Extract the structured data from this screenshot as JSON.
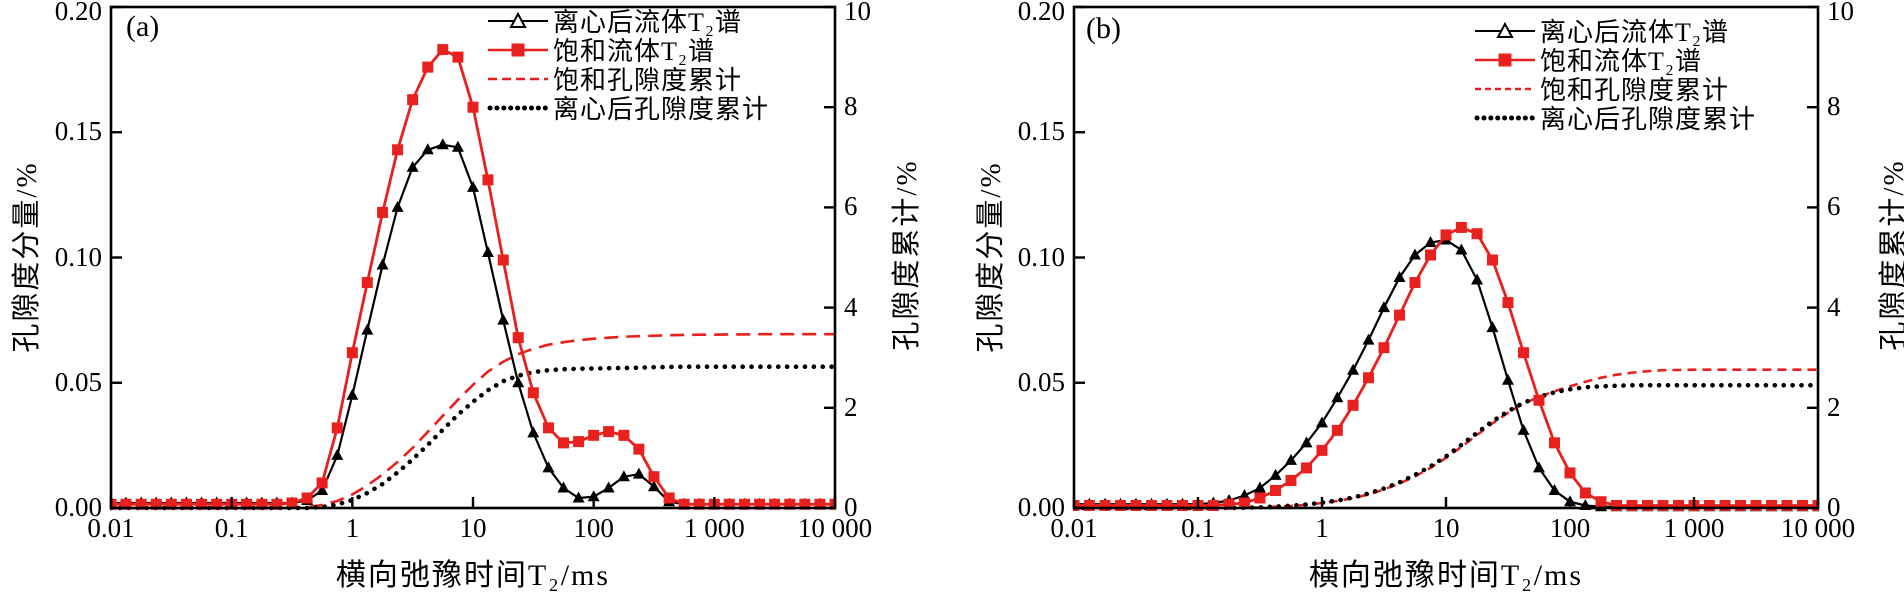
{
  "colors": {
    "red": "#e8201e",
    "black": "#000000"
  },
  "chart_data": [
    {
      "type": "line",
      "tag": "(a)",
      "xlabel": "横向弛豫时间T₂/ms",
      "ylabel_left": "孔隙度分量/%",
      "ylabel_right": "孔隙度累计/%",
      "x_scale": "log",
      "x_range": [
        0.01,
        10000
      ],
      "y_left_range": [
        0,
        0.2
      ],
      "y_right_range": [
        0,
        10
      ],
      "x_ticks": {
        "values": [
          0.01,
          0.1,
          1,
          10,
          100,
          1000,
          10000
        ],
        "labels": [
          "0.01",
          "0.1",
          "1",
          "10",
          "100",
          "1 000",
          "10 000"
        ]
      },
      "y_left_ticks": {
        "values": [
          0.2,
          0.15,
          0.1,
          0.05,
          0.0
        ],
        "labels": [
          "0.20",
          "0.15",
          "0.10",
          "0.05",
          "0.00"
        ]
      },
      "y_right_ticks": {
        "values": [
          10,
          8,
          6,
          4,
          2,
          0
        ],
        "labels": [
          "10",
          "8",
          "6",
          "4",
          "2",
          "0"
        ]
      },
      "legend": [
        {
          "label": "离心后流体T₂谱",
          "marker": "triangle-line-black"
        },
        {
          "label": "饱和流体T₂谱",
          "marker": "square-line-red"
        },
        {
          "label": "饱和孔隙度累计",
          "marker": "dashed-red"
        },
        {
          "label": "离心后孔隙度累计",
          "marker": "dotted-black"
        }
      ],
      "x": [
        0.01,
        0.0133,
        0.0178,
        0.0237,
        0.0316,
        0.0422,
        0.0562,
        0.075,
        0.1,
        0.133,
        0.178,
        0.237,
        0.316,
        0.422,
        0.562,
        0.75,
        1,
        1.33,
        1.78,
        2.37,
        3.16,
        4.22,
        5.62,
        7.5,
        10,
        13.3,
        17.8,
        23.7,
        31.6,
        42.2,
        56.2,
        75,
        100,
        133,
        178,
        237,
        316,
        422,
        562,
        750,
        1000,
        1330,
        1780,
        2370,
        3160,
        4220,
        5620,
        7500,
        10000
      ],
      "series": [
        {
          "name": "饱和孔隙度累计",
          "axis": "right",
          "style": "dash-red",
          "y": [
            0,
            0,
            0,
            0,
            0,
            0,
            0,
            0,
            0,
            0,
            0,
            0,
            0,
            0.02,
            0.06,
            0.14,
            0.27,
            0.45,
            0.67,
            0.92,
            1.2,
            1.52,
            1.84,
            2.16,
            2.46,
            2.72,
            2.92,
            3.07,
            3.18,
            3.26,
            3.31,
            3.35,
            3.38,
            3.4,
            3.42,
            3.43,
            3.44,
            3.45,
            3.455,
            3.46,
            3.46,
            3.465,
            3.465,
            3.47,
            3.47,
            3.47,
            3.47,
            3.47,
            3.47
          ]
        },
        {
          "name": "离心后孔隙度累计",
          "axis": "right",
          "style": "dot-black",
          "y": [
            0,
            0,
            0,
            0,
            0,
            0,
            0,
            0,
            0,
            0,
            0,
            0,
            0,
            0,
            0.02,
            0.07,
            0.16,
            0.3,
            0.48,
            0.71,
            0.97,
            1.26,
            1.56,
            1.86,
            2.12,
            2.35,
            2.53,
            2.64,
            2.71,
            2.75,
            2.77,
            2.78,
            2.785,
            2.79,
            2.795,
            2.8,
            2.81,
            2.815,
            2.82,
            2.82,
            2.82,
            2.82,
            2.82,
            2.82,
            2.82,
            2.82,
            2.82,
            2.82,
            2.82
          ]
        },
        {
          "name": "离心后流体T₂谱",
          "axis": "left",
          "style": "line-triangle-black",
          "y": [
            0.002,
            0.002,
            0.002,
            0.002,
            0.002,
            0.002,
            0.002,
            0.002,
            0.002,
            0.002,
            0.002,
            0.002,
            0.002,
            0.003,
            0.007,
            0.021,
            0.045,
            0.071,
            0.097,
            0.12,
            0.136,
            0.143,
            0.145,
            0.144,
            0.128,
            0.102,
            0.075,
            0.05,
            0.03,
            0.016,
            0.008,
            0.004,
            0.0045,
            0.008,
            0.0125,
            0.0135,
            0.0085,
            0.0025,
            0.0015,
            0.0015,
            0.0015,
            0.0015,
            0.0015,
            0.0015,
            0.0015,
            0.0015,
            0.0015,
            0.0015,
            0.0015
          ]
        },
        {
          "name": "饱和流体T₂谱",
          "axis": "left",
          "style": "line-square-red",
          "y": [
            0.0015,
            0.0015,
            0.0015,
            0.0015,
            0.0015,
            0.0015,
            0.0015,
            0.0015,
            0.0015,
            0.0015,
            0.0015,
            0.0015,
            0.002,
            0.004,
            0.01,
            0.032,
            0.062,
            0.09,
            0.118,
            0.143,
            0.163,
            0.176,
            0.183,
            0.18,
            0.16,
            0.131,
            0.099,
            0.068,
            0.046,
            0.032,
            0.026,
            0.0265,
            0.029,
            0.0305,
            0.029,
            0.0235,
            0.0125,
            0.004,
            0.0015,
            0.0015,
            0.0015,
            0.0015,
            0.0015,
            0.0015,
            0.0015,
            0.0015,
            0.0015,
            0.0015,
            0.0015
          ]
        }
      ]
    },
    {
      "type": "line",
      "tag": "(b)",
      "xlabel": "横向弛豫时间T₂/ms",
      "ylabel_left": "孔隙度分量/%",
      "ylabel_right": "孔隙度累计/%",
      "x_scale": "log",
      "x_range": [
        0.01,
        10000
      ],
      "y_left_range": [
        0,
        0.2
      ],
      "y_right_range": [
        0,
        10
      ],
      "x_ticks": {
        "values": [
          0.01,
          0.1,
          1,
          10,
          100,
          1000,
          10000
        ],
        "labels": [
          "0.01",
          "0.1",
          "1",
          "10",
          "100",
          "1 000",
          "10 000"
        ]
      },
      "y_left_ticks": {
        "values": [
          0.2,
          0.15,
          0.1,
          0.05,
          0.0
        ],
        "labels": [
          "0.20",
          "0.15",
          "0.10",
          "0.05",
          "0.00"
        ]
      },
      "y_right_ticks": {
        "values": [
          10,
          8,
          6,
          4,
          2,
          0
        ],
        "labels": [
          "10",
          "8",
          "6",
          "4",
          "2",
          "0"
        ]
      },
      "legend": [
        {
          "label": "离心后流体T₂谱",
          "marker": "triangle-line-black"
        },
        {
          "label": "饱和流体T₂谱",
          "marker": "square-line-red"
        },
        {
          "label": "饱和孔隙度累计",
          "marker": "dashed-red"
        },
        {
          "label": "离心后孔隙度累计",
          "marker": "dotted-black"
        }
      ],
      "x": [
        0.01,
        0.0133,
        0.0178,
        0.0237,
        0.0316,
        0.0422,
        0.0562,
        0.075,
        0.1,
        0.133,
        0.178,
        0.237,
        0.316,
        0.422,
        0.562,
        0.75,
        1,
        1.33,
        1.78,
        2.37,
        3.16,
        4.22,
        5.62,
        7.5,
        10,
        13.3,
        17.8,
        23.7,
        31.6,
        42.2,
        56.2,
        75,
        100,
        133,
        178,
        237,
        316,
        422,
        562,
        750,
        1000,
        1330,
        1780,
        2370,
        3160,
        4220,
        5620,
        7500,
        10000
      ],
      "series": [
        {
          "name": "饱和孔隙度累计",
          "axis": "right",
          "style": "dash-red",
          "y": [
            0,
            0,
            0,
            0,
            0,
            0,
            0,
            0,
            0,
            0,
            0,
            0.005,
            0.012,
            0.025,
            0.042,
            0.065,
            0.1,
            0.14,
            0.2,
            0.27,
            0.37,
            0.49,
            0.63,
            0.8,
            1.0,
            1.22,
            1.46,
            1.69,
            1.9,
            2.08,
            2.22,
            2.33,
            2.43,
            2.52,
            2.6,
            2.66,
            2.7,
            2.73,
            2.75,
            2.755,
            2.76,
            2.76,
            2.76,
            2.76,
            2.76,
            2.76,
            2.76,
            2.76,
            2.76
          ]
        },
        {
          "name": "离心后孔隙度累计",
          "axis": "right",
          "style": "dot-black",
          "y": [
            0,
            0,
            0,
            0,
            0,
            0,
            0,
            0,
            0,
            0,
            0,
            0.005,
            0.013,
            0.027,
            0.045,
            0.07,
            0.105,
            0.15,
            0.21,
            0.29,
            0.39,
            0.51,
            0.66,
            0.83,
            1.03,
            1.26,
            1.5,
            1.73,
            1.93,
            2.1,
            2.22,
            2.31,
            2.37,
            2.41,
            2.43,
            2.44,
            2.45,
            2.45,
            2.45,
            2.45,
            2.45,
            2.45,
            2.45,
            2.45,
            2.45,
            2.45,
            2.45,
            2.45,
            2.45
          ]
        },
        {
          "name": "离心后流体T₂谱",
          "axis": "left",
          "style": "line-triangle-black",
          "y": [
            0.0015,
            0.0015,
            0.0015,
            0.0015,
            0.0015,
            0.0015,
            0.0015,
            0.0015,
            0.0015,
            0.002,
            0.003,
            0.005,
            0.008,
            0.013,
            0.019,
            0.026,
            0.034,
            0.044,
            0.055,
            0.067,
            0.08,
            0.092,
            0.101,
            0.106,
            0.107,
            0.103,
            0.091,
            0.072,
            0.051,
            0.031,
            0.016,
            0.007,
            0.0025,
            0.001,
            0.0005,
            0.0005,
            0.0005,
            0.0005,
            0.0005,
            0.0005,
            0.0005,
            0.0005,
            0.0005,
            0.0005,
            0.0005,
            0.0005,
            0.0005,
            0.0005,
            0.0005
          ]
        },
        {
          "name": "饱和流体T₂谱",
          "axis": "left",
          "style": "line-square-red",
          "y": [
            0.001,
            0.001,
            0.001,
            0.001,
            0.001,
            0.001,
            0.001,
            0.001,
            0.001,
            0.001,
            0.0015,
            0.002,
            0.004,
            0.007,
            0.011,
            0.016,
            0.023,
            0.031,
            0.041,
            0.052,
            0.064,
            0.077,
            0.09,
            0.101,
            0.109,
            0.112,
            0.1095,
            0.099,
            0.082,
            0.062,
            0.043,
            0.026,
            0.014,
            0.006,
            0.0025,
            0.001,
            0.001,
            0.001,
            0.001,
            0.001,
            0.001,
            0.001,
            0.001,
            0.001,
            0.001,
            0.001,
            0.001,
            0.001,
            0.001
          ]
        }
      ]
    }
  ]
}
